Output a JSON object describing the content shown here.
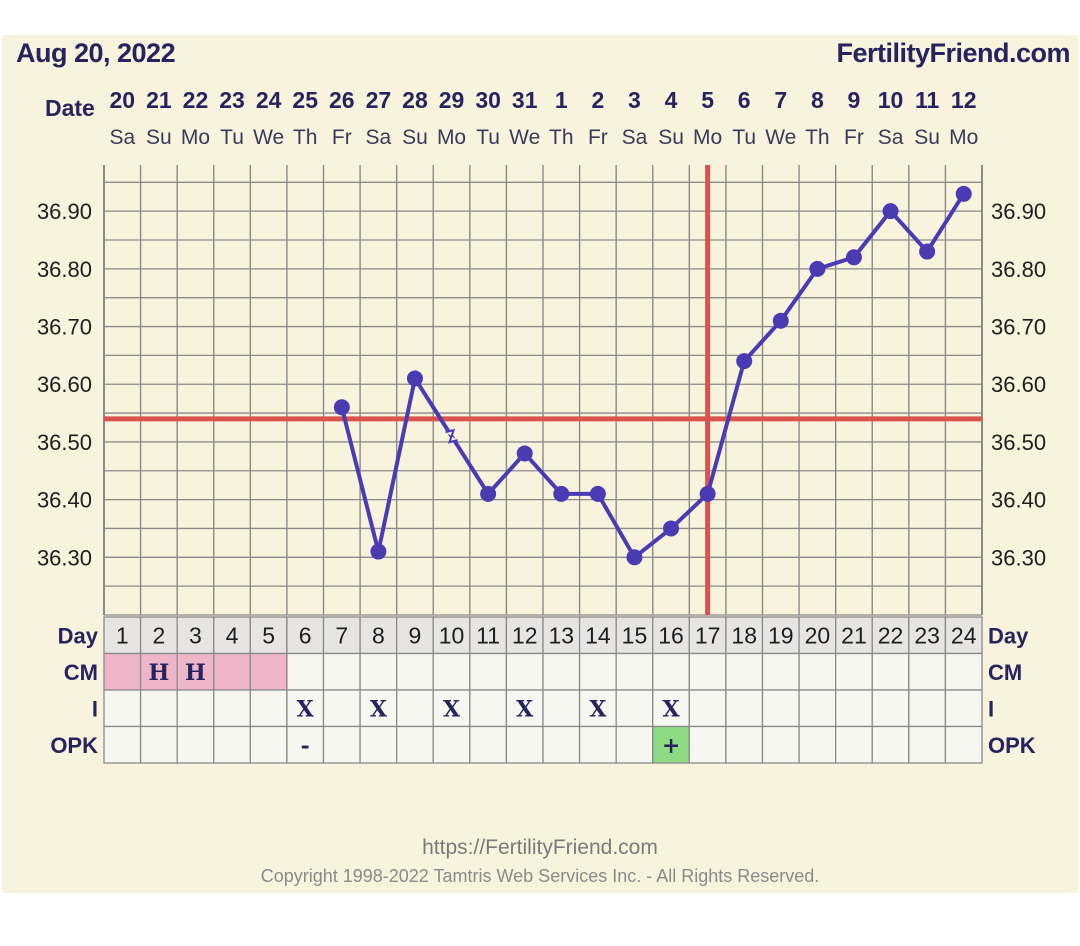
{
  "header": {
    "date": "Aug 20, 2022",
    "site": "FertilityFriend.com"
  },
  "footer": {
    "url": "https://FertilityFriend.com",
    "copyright": "Copyright 1998-2022 Tamtris Web Services Inc. - All Rights Reserved."
  },
  "colors": {
    "panel": "#f7f3dd",
    "grid": "#8a8a8a",
    "temp_line": "#4b3bb3",
    "coverline": "#d9534f",
    "row_bg": "#f7f7f2",
    "day_row_bg": "#e6e5e3",
    "cm_highlight": "#efb5c8",
    "opk_positive": "#8fdb84",
    "label_text": "#27235e",
    "axis_text": "#1e1e1e"
  },
  "chart_data": {
    "type": "line",
    "title": "",
    "xlabel": "Date",
    "ylabel": "",
    "ylim": [
      36.2,
      36.98
    ],
    "y_ticks": [
      "36.30",
      "36.40",
      "36.50",
      "36.60",
      "36.70",
      "36.80",
      "36.90"
    ],
    "date_label": "Date",
    "dates": [
      "20",
      "21",
      "22",
      "23",
      "24",
      "25",
      "26",
      "27",
      "28",
      "29",
      "30",
      "31",
      "1",
      "2",
      "3",
      "4",
      "5",
      "6",
      "7",
      "8",
      "9",
      "10",
      "11",
      "12"
    ],
    "weekdays": [
      "Sa",
      "Su",
      "Mo",
      "Tu",
      "We",
      "Th",
      "Fr",
      "Sa",
      "Su",
      "Mo",
      "Tu",
      "We",
      "Th",
      "Fr",
      "Sa",
      "Su",
      "Mo",
      "Tu",
      "We",
      "Th",
      "Fr",
      "Sa",
      "Su",
      "Mo"
    ],
    "days": [
      1,
      2,
      3,
      4,
      5,
      6,
      7,
      8,
      9,
      10,
      11,
      12,
      13,
      14,
      15,
      16,
      17,
      18,
      19,
      20,
      21,
      22,
      23,
      24
    ],
    "grid": true,
    "series": [
      {
        "values": [
          null,
          null,
          null,
          null,
          null,
          null,
          36.56,
          36.31,
          36.61,
          null,
          36.41,
          36.48,
          36.41,
          36.41,
          36.3,
          36.35,
          36.41,
          36.64,
          36.71,
          36.8,
          36.82,
          36.9,
          36.83,
          36.93
        ]
      }
    ],
    "coverline": 36.54,
    "ovulation_day": 17,
    "rows": [
      {
        "label": "Day",
        "cells": []
      },
      {
        "label": "CM",
        "cells": [
          "",
          "H",
          "H",
          "",
          "",
          "",
          "",
          "",
          "",
          "",
          "",
          "",
          "",
          "",
          "",
          "",
          "",
          "",
          "",
          "",
          "",
          "",
          "",
          ""
        ],
        "highlight_days": [
          1,
          2,
          3,
          4,
          5
        ]
      },
      {
        "label": "I",
        "cells": [
          "",
          "",
          "",
          "",
          "",
          "X",
          "",
          "X",
          "",
          "X",
          "",
          "X",
          "",
          "X",
          "",
          "X",
          "",
          "",
          "",
          "",
          "",
          "",
          "",
          ""
        ]
      },
      {
        "label": "OPK",
        "cells": [
          "",
          "",
          "",
          "",
          "",
          "-",
          "",
          "",
          "",
          "",
          "",
          "",
          "",
          "",
          "",
          "+",
          "",
          "",
          "",
          "",
          "",
          "",
          "",
          ""
        ],
        "positive_days": [
          16
        ]
      }
    ]
  }
}
